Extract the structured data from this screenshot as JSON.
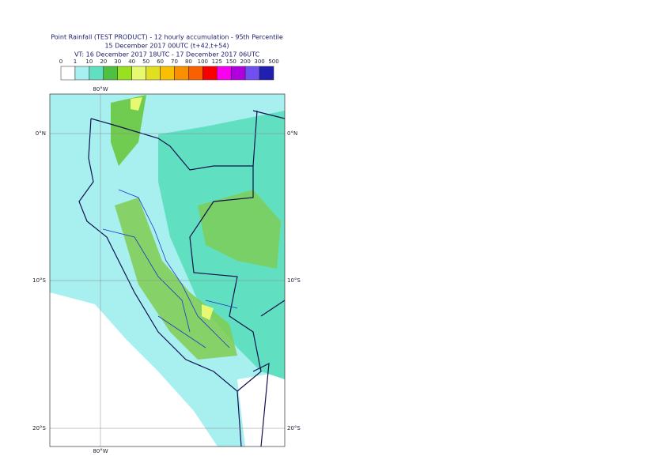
{
  "header": {
    "title": "Point Rainfall (TEST PRODUCT) - 12 hourly accumulation - 95th Percentile",
    "base_time": "15 December 2017 00UTC (t+42,t+54)",
    "valid_time": "VT: 16 December 2017 18UTC - 17 December 2017 06UTC"
  },
  "legend": {
    "labels": [
      "0",
      "1",
      "10",
      "20",
      "30",
      "40",
      "50",
      "60",
      "70",
      "80",
      "100",
      "125",
      "150",
      "200",
      "300",
      "500"
    ],
    "colors": [
      "#ffffff",
      "#a8f0f0",
      "#60e0c0",
      "#50c040",
      "#98e020",
      "#e8f870",
      "#e0e020",
      "#f8c000",
      "#f89000",
      "#f86000",
      "#f80000",
      "#f800f0",
      "#b000e0",
      "#7050f0",
      "#2020b0",
      "#101050"
    ]
  },
  "map": {
    "lon_labels": [
      "80°W",
      "80°W"
    ],
    "lat_labels": [
      "0°N",
      "10°S",
      "20°S",
      "0°N",
      "10°S",
      "20°S"
    ]
  }
}
